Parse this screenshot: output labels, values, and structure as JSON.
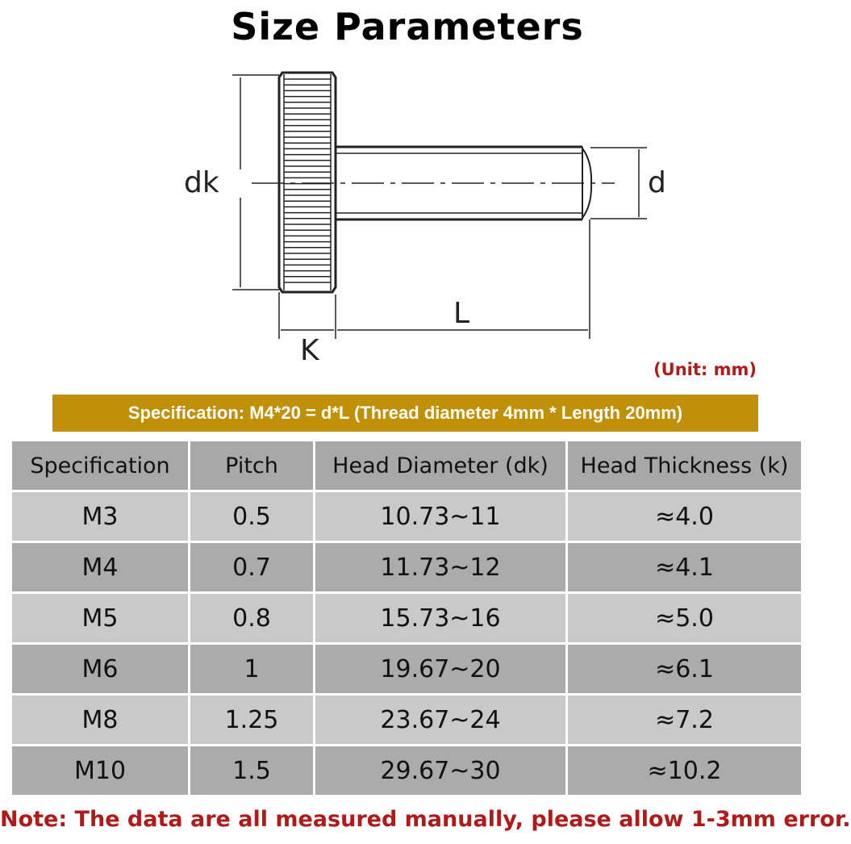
{
  "title": "Size Parameters",
  "diagram": {
    "labels": {
      "dk": "dk",
      "d": "d",
      "L": "L",
      "K": "K"
    }
  },
  "unit": "(Unit: mm)",
  "banner": "Specification: M4*20 = d*L (Thread diameter 4mm * Length 20mm)",
  "table": {
    "headers": [
      "Specification",
      "Pitch",
      "Head Diameter (dk)",
      "Head Thickness (k)"
    ],
    "rows": [
      [
        "M3",
        "0.5",
        "10.73~11",
        "≈4.0"
      ],
      [
        "M4",
        "0.7",
        "11.73~12",
        "≈4.1"
      ],
      [
        "M5",
        "0.8",
        "15.73~16",
        "≈5.0"
      ],
      [
        "M6",
        "1",
        "19.67~20",
        "≈6.1"
      ],
      [
        "M8",
        "1.25",
        "23.67~24",
        "≈7.2"
      ],
      [
        "M10",
        "1.5",
        "29.67~30",
        "≈10.2"
      ]
    ]
  },
  "note": "Note: The data are all measured manually, please allow 1-3mm error.",
  "colors": {
    "banner": "#bf9008",
    "note": "#b01a1a",
    "header_row": "#a8a8a8",
    "light_row": "#c9c9c9",
    "dark_row": "#ababab"
  }
}
